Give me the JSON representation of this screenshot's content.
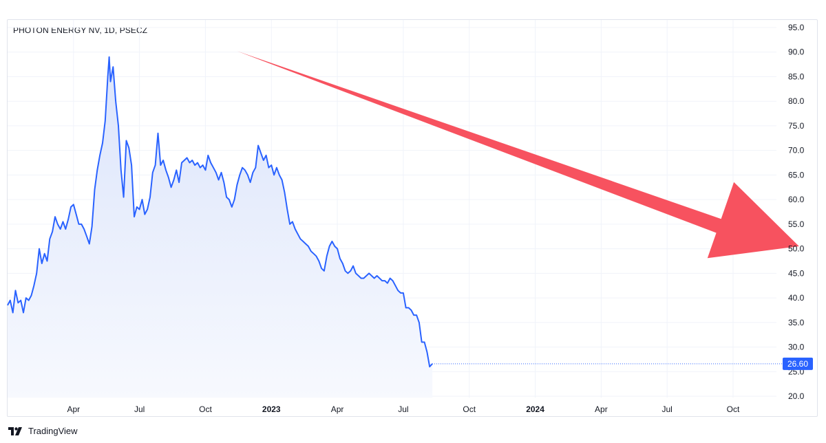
{
  "chart_data": {
    "type": "area",
    "title": "PHOTON ENERGY NV, 1D, PSECZ",
    "ylim": [
      20,
      95
    ],
    "y_ticks": [
      "95.0",
      "90.0",
      "85.0",
      "80.0",
      "75.0",
      "70.0",
      "65.0",
      "60.0",
      "55.0",
      "50.0",
      "45.0",
      "40.0",
      "35.0",
      "30.0",
      "25.0",
      "20.0"
    ],
    "x_range": [
      2022.0,
      2024.96
    ],
    "x_ticks": [
      {
        "label": "Apr",
        "x": 2022.25,
        "bold": false
      },
      {
        "label": "Jul",
        "x": 2022.5,
        "bold": false
      },
      {
        "label": "Oct",
        "x": 2022.75,
        "bold": false
      },
      {
        "label": "2023",
        "x": 2023.0,
        "bold": true
      },
      {
        "label": "Apr",
        "x": 2023.25,
        "bold": false
      },
      {
        "label": "Jul",
        "x": 2023.5,
        "bold": false
      },
      {
        "label": "Oct",
        "x": 2023.75,
        "bold": false
      },
      {
        "label": "2024",
        "x": 2024.0,
        "bold": true
      },
      {
        "label": "Apr",
        "x": 2024.25,
        "bold": false
      },
      {
        "label": "Jul",
        "x": 2024.5,
        "bold": false
      },
      {
        "label": "Oct",
        "x": 2024.75,
        "bold": false
      }
    ],
    "last_price": "26.60",
    "last_price_value": 26.6,
    "grid": true,
    "line_color": "#2962ff",
    "fill_color_top": "#dbe4fb",
    "fill_color_bottom": "#f7f9fe",
    "label_color": "#2962ff",
    "annotation_color": "#f7525f",
    "annotation": {
      "type": "arrow",
      "from": [
        2022.87,
        90.2
      ],
      "to": [
        2025.0,
        50.5
      ]
    },
    "series": [
      {
        "values": [
          [
            2022.0,
            38.5
          ],
          [
            2022.01,
            39.5
          ],
          [
            2022.02,
            37.0
          ],
          [
            2022.03,
            41.5
          ],
          [
            2022.04,
            39.0
          ],
          [
            2022.05,
            39.5
          ],
          [
            2022.06,
            37.0
          ],
          [
            2022.07,
            40.0
          ],
          [
            2022.08,
            39.5
          ],
          [
            2022.09,
            40.5
          ],
          [
            2022.1,
            42.5
          ],
          [
            2022.11,
            45.0
          ],
          [
            2022.12,
            50.0
          ],
          [
            2022.13,
            47.0
          ],
          [
            2022.14,
            49.0
          ],
          [
            2022.15,
            47.5
          ],
          [
            2022.16,
            52.0
          ],
          [
            2022.17,
            53.5
          ],
          [
            2022.18,
            56.5
          ],
          [
            2022.19,
            55.0
          ],
          [
            2022.2,
            54.0
          ],
          [
            2022.21,
            55.5
          ],
          [
            2022.22,
            54.0
          ],
          [
            2022.23,
            56.0
          ],
          [
            2022.24,
            58.5
          ],
          [
            2022.25,
            59.0
          ],
          [
            2022.26,
            57.0
          ],
          [
            2022.27,
            55.0
          ],
          [
            2022.28,
            55.0
          ],
          [
            2022.29,
            54.0
          ],
          [
            2022.3,
            52.5
          ],
          [
            2022.31,
            51.0
          ],
          [
            2022.32,
            54.5
          ],
          [
            2022.33,
            62.0
          ],
          [
            2022.34,
            66.0
          ],
          [
            2022.35,
            69.0
          ],
          [
            2022.36,
            71.5
          ],
          [
            2022.37,
            76.0
          ],
          [
            2022.38,
            85.0
          ],
          [
            2022.385,
            89.0
          ],
          [
            2022.39,
            84.0
          ],
          [
            2022.4,
            87.0
          ],
          [
            2022.41,
            80.0
          ],
          [
            2022.42,
            75.0
          ],
          [
            2022.43,
            66.0
          ],
          [
            2022.44,
            60.5
          ],
          [
            2022.45,
            72.0
          ],
          [
            2022.46,
            70.5
          ],
          [
            2022.47,
            67.0
          ],
          [
            2022.48,
            56.5
          ],
          [
            2022.49,
            58.5
          ],
          [
            2022.5,
            58.0
          ],
          [
            2022.51,
            60.0
          ],
          [
            2022.52,
            57.0
          ],
          [
            2022.53,
            58.0
          ],
          [
            2022.54,
            60.5
          ],
          [
            2022.55,
            65.5
          ],
          [
            2022.56,
            67.0
          ],
          [
            2022.57,
            73.5
          ],
          [
            2022.58,
            67.0
          ],
          [
            2022.59,
            68.0
          ],
          [
            2022.6,
            66.0
          ],
          [
            2022.61,
            64.5
          ],
          [
            2022.62,
            62.5
          ],
          [
            2022.63,
            64.0
          ],
          [
            2022.64,
            66.0
          ],
          [
            2022.65,
            63.5
          ],
          [
            2022.66,
            67.5
          ],
          [
            2022.67,
            68.0
          ],
          [
            2022.68,
            68.5
          ],
          [
            2022.69,
            67.5
          ],
          [
            2022.7,
            68.0
          ],
          [
            2022.71,
            67.0
          ],
          [
            2022.72,
            67.5
          ],
          [
            2022.73,
            66.5
          ],
          [
            2022.74,
            67.0
          ],
          [
            2022.75,
            66.0
          ],
          [
            2022.76,
            69.0
          ],
          [
            2022.77,
            67.5
          ],
          [
            2022.78,
            66.5
          ],
          [
            2022.79,
            65.5
          ],
          [
            2022.8,
            64.0
          ],
          [
            2022.81,
            65.5
          ],
          [
            2022.82,
            63.5
          ],
          [
            2022.83,
            60.5
          ],
          [
            2022.84,
            60.0
          ],
          [
            2022.85,
            58.5
          ],
          [
            2022.86,
            60.0
          ],
          [
            2022.87,
            63.0
          ],
          [
            2022.88,
            65.0
          ],
          [
            2022.89,
            66.5
          ],
          [
            2022.9,
            66.0
          ],
          [
            2022.91,
            65.0
          ],
          [
            2022.92,
            63.5
          ],
          [
            2022.93,
            65.5
          ],
          [
            2022.94,
            66.5
          ],
          [
            2022.95,
            71.0
          ],
          [
            2022.96,
            69.5
          ],
          [
            2022.97,
            68.0
          ],
          [
            2022.98,
            69.0
          ],
          [
            2022.99,
            66.5
          ],
          [
            2023.0,
            67.0
          ],
          [
            2023.01,
            65.0
          ],
          [
            2023.02,
            66.5
          ],
          [
            2023.03,
            65.0
          ],
          [
            2023.04,
            64.0
          ],
          [
            2023.05,
            61.5
          ],
          [
            2023.06,
            58.0
          ],
          [
            2023.07,
            55.0
          ],
          [
            2023.08,
            55.5
          ],
          [
            2023.09,
            54.0
          ],
          [
            2023.1,
            53.0
          ],
          [
            2023.11,
            52.0
          ],
          [
            2023.12,
            51.5
          ],
          [
            2023.13,
            51.0
          ],
          [
            2023.14,
            50.5
          ],
          [
            2023.15,
            49.5
          ],
          [
            2023.16,
            49.0
          ],
          [
            2023.17,
            48.5
          ],
          [
            2023.18,
            47.5
          ],
          [
            2023.19,
            46.0
          ],
          [
            2023.2,
            45.5
          ],
          [
            2023.21,
            48.5
          ],
          [
            2023.22,
            50.5
          ],
          [
            2023.23,
            51.5
          ],
          [
            2023.24,
            50.5
          ],
          [
            2023.25,
            50.0
          ],
          [
            2023.26,
            48.0
          ],
          [
            2023.27,
            47.0
          ],
          [
            2023.28,
            45.5
          ],
          [
            2023.29,
            45.0
          ],
          [
            2023.3,
            45.5
          ],
          [
            2023.31,
            46.5
          ],
          [
            2023.32,
            45.0
          ],
          [
            2023.33,
            44.5
          ],
          [
            2023.34,
            44.0
          ],
          [
            2023.35,
            44.0
          ],
          [
            2023.36,
            44.5
          ],
          [
            2023.37,
            45.0
          ],
          [
            2023.38,
            44.5
          ],
          [
            2023.39,
            44.0
          ],
          [
            2023.4,
            44.5
          ],
          [
            2023.41,
            44.0
          ],
          [
            2023.42,
            43.5
          ],
          [
            2023.43,
            43.5
          ],
          [
            2023.44,
            43.0
          ],
          [
            2023.45,
            44.0
          ],
          [
            2023.46,
            43.5
          ],
          [
            2023.47,
            42.5
          ],
          [
            2023.48,
            41.5
          ],
          [
            2023.49,
            41.0
          ],
          [
            2023.5,
            41.0
          ],
          [
            2023.51,
            38.0
          ],
          [
            2023.52,
            38.0
          ],
          [
            2023.53,
            37.5
          ],
          [
            2023.54,
            36.5
          ],
          [
            2023.55,
            36.5
          ],
          [
            2023.56,
            35.0
          ],
          [
            2023.57,
            31.0
          ],
          [
            2023.58,
            31.0
          ],
          [
            2023.59,
            29.0
          ],
          [
            2023.6,
            26.0
          ],
          [
            2023.61,
            26.6
          ]
        ]
      }
    ]
  }
}
